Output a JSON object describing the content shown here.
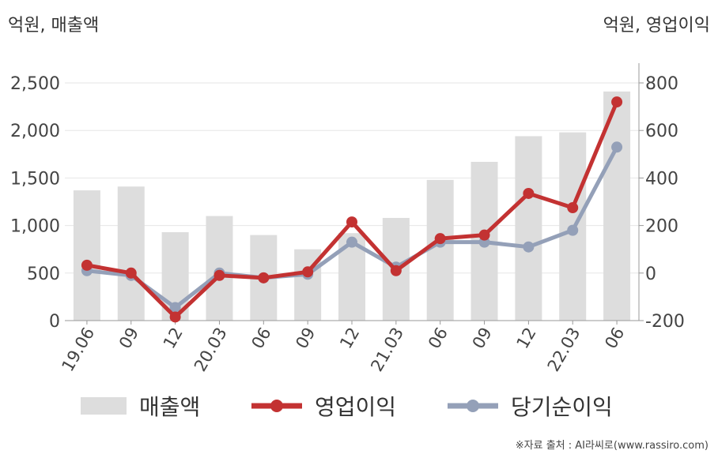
{
  "units": {
    "left": "억원, 매출액",
    "right": "억원, 영업이익"
  },
  "source": "※자료 출처 : AI라씨로(www.rassiro.com)",
  "colors": {
    "bar": "#dddddd",
    "operating_profit": "#c33232",
    "net_income": "#94a0b8",
    "grid": "#e6e6e6",
    "axis": "#999999"
  },
  "chart_data": {
    "type": "bar",
    "categories": [
      "19.06",
      "09",
      "12",
      "20.03",
      "06",
      "09",
      "12",
      "21.03",
      "06",
      "09",
      "12",
      "22.03",
      "06"
    ],
    "y_left": {
      "ticks": [
        0,
        500,
        1000,
        1500,
        2000,
        2500
      ],
      "tick_labels": [
        "0",
        "500",
        "1,000",
        "1,500",
        "2,000",
        "2,500"
      ],
      "ylim": [
        0,
        2500
      ]
    },
    "y_right": {
      "ticks": [
        -200,
        0,
        200,
        400,
        600,
        800
      ],
      "tick_labels": [
        "-200",
        "0",
        "200",
        "400",
        "600",
        "800"
      ],
      "ylim": [
        -200,
        800
      ]
    },
    "grid": true,
    "legend_position": "bottom",
    "series": [
      {
        "name": "매출액",
        "type": "bar",
        "axis": "left",
        "values": [
          1370,
          1410,
          930,
          1100,
          900,
          750,
          920,
          1080,
          1480,
          1670,
          1940,
          1980,
          2410
        ]
      },
      {
        "name": "영업이익",
        "type": "line",
        "axis": "right",
        "values": [
          33,
          0,
          -185,
          -10,
          -20,
          5,
          215,
          10,
          145,
          160,
          335,
          275,
          720
        ]
      },
      {
        "name": "당기순이익",
        "type": "line",
        "axis": "right",
        "values": [
          10,
          -10,
          -145,
          0,
          -20,
          -5,
          130,
          25,
          130,
          130,
          110,
          180,
          530
        ]
      }
    ]
  }
}
